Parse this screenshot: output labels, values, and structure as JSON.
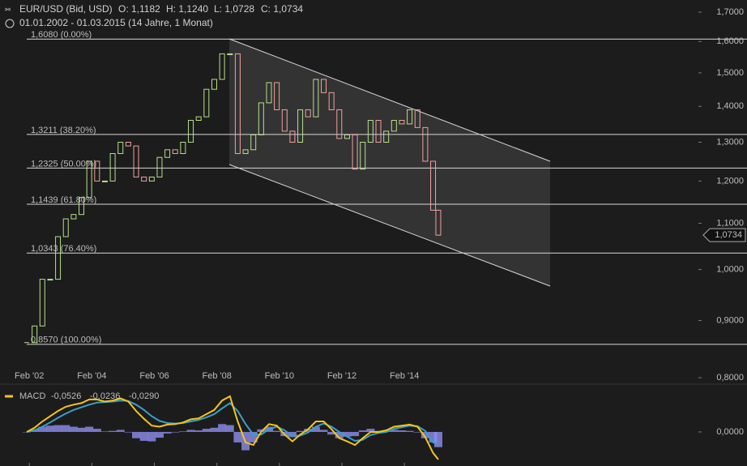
{
  "chart_data": [
    {
      "type": "candlestick",
      "symbol": "EUR/USD (Bid, USD)",
      "ohlc": [
        "O: 1,1182",
        "H: 1,1240",
        "L: 1,0728",
        "C: 1,0734"
      ],
      "range": "01.01.2002 - 01.03.2015 (14 Jahre, 1 Monat)",
      "x": [
        "2002-01",
        "2002-04",
        "2002-07",
        "2002-10",
        "2003-01",
        "2003-04",
        "2003-07",
        "2003-10",
        "2004-01",
        "2004-04",
        "2004-07",
        "2004-10",
        "2005-01",
        "2005-04",
        "2005-07",
        "2005-10",
        "2006-01",
        "2006-04",
        "2006-07",
        "2006-10",
        "2007-01",
        "2007-04",
        "2007-07",
        "2007-10",
        "2008-01",
        "2008-04",
        "2008-07",
        "2008-10",
        "2009-01",
        "2009-04",
        "2009-07",
        "2009-10",
        "2010-01",
        "2010-04",
        "2010-07",
        "2010-10",
        "2011-01",
        "2011-04",
        "2011-07",
        "2011-10",
        "2012-01",
        "2012-04",
        "2012-07",
        "2012-10",
        "2013-01",
        "2013-04",
        "2013-07",
        "2013-10",
        "2014-01",
        "2014-04",
        "2014-07",
        "2014-10",
        "2015-01",
        "2015-03"
      ],
      "values": [
        0.86,
        0.89,
        0.98,
        0.98,
        1.07,
        1.11,
        1.12,
        1.16,
        1.25,
        1.2,
        1.2,
        1.27,
        1.3,
        1.29,
        1.21,
        1.2,
        1.21,
        1.26,
        1.28,
        1.27,
        1.3,
        1.36,
        1.37,
        1.45,
        1.48,
        1.56,
        1.56,
        1.27,
        1.28,
        1.32,
        1.41,
        1.47,
        1.39,
        1.33,
        1.3,
        1.39,
        1.37,
        1.48,
        1.44,
        1.39,
        1.31,
        1.32,
        1.23,
        1.3,
        1.36,
        1.3,
        1.33,
        1.36,
        1.35,
        1.39,
        1.34,
        1.25,
        1.13,
        1.0734
      ],
      "last_label": "1,0734",
      "up_color": "#b5e08a",
      "down_color": "#f2a0a0",
      "log": true,
      "ylim": [
        0.8,
        1.7
      ],
      "yticks": [
        {
          "value": 0.8,
          "label": "0,8000"
        },
        {
          "value": 0.9,
          "label": "0,9000"
        },
        {
          "value": 1,
          "label": "1,0000"
        },
        {
          "value": 1.1,
          "label": "1,1000"
        },
        {
          "value": 1.2,
          "label": "1,2000"
        },
        {
          "value": 1.3,
          "label": "1,3000"
        },
        {
          "value": 1.4,
          "label": "1,4000"
        },
        {
          "value": 1.5,
          "label": "1,5000"
        },
        {
          "value": 1.6,
          "label": "1,6000"
        },
        {
          "value": 1.7,
          "label": "1,7000"
        }
      ],
      "xticks": [
        {
          "value": "2002-02",
          "label": "Feb '02"
        },
        {
          "value": "2004-02",
          "label": "Feb '04"
        },
        {
          "value": "2006-02",
          "label": "Feb '06"
        },
        {
          "value": "2008-02",
          "label": "Feb '08"
        },
        {
          "value": "2010-02",
          "label": "Feb '10"
        },
        {
          "value": "2012-02",
          "label": "Feb '12"
        },
        {
          "value": "2014-02",
          "label": "Feb '14"
        }
      ],
      "levels": [
        {
          "value": 1.608,
          "label": "1,6080 (0.00%)"
        },
        {
          "value": 1.3211,
          "label": "1,3211 (38.20%)"
        },
        {
          "value": 1.2325,
          "label": "1,2325 (50.00%)"
        },
        {
          "value": 1.1439,
          "label": "1,1439 (61.80%)"
        },
        {
          "value": 1.0343,
          "label": "1,0343 (76.40%)"
        },
        {
          "value": 0.857,
          "label": "0,8570 (100.00%)"
        }
      ]
    },
    {
      "type": "macd",
      "title": "MACD",
      "ylim": [
        -0.065,
        0.085
      ],
      "yticks": [
        {
          "value": 0,
          "label": "0,0000"
        }
      ],
      "series": [
        {
          "legend_value": "-0,0526",
          "color": "#f5c518",
          "values": [
            0,
            0.008,
            0.02,
            0.03,
            0.04,
            0.048,
            0.052,
            0.055,
            0.062,
            0.062,
            0.058,
            0.06,
            0.064,
            0.058,
            0.04,
            0.025,
            0.012,
            0.01,
            0.014,
            0.015,
            0.018,
            0.024,
            0.026,
            0.034,
            0.042,
            0.06,
            0.068,
            0.02,
            -0.02,
            -0.025,
            0,
            0.015,
            0.012,
            -0.005,
            -0.018,
            -0.005,
            0.005,
            0.02,
            0.02,
            0.005,
            -0.012,
            -0.018,
            -0.025,
            -0.012,
            0,
            0,
            0.003,
            0.01,
            0.012,
            0.014,
            0.01,
            -0.01,
            -0.04,
            -0.0526
          ]
        },
        {
          "legend_value": "-0,0236",
          "color": "#3a9ec9",
          "values": [
            0,
            0.003,
            0.01,
            0.018,
            0.027,
            0.035,
            0.042,
            0.047,
            0.052,
            0.056,
            0.057,
            0.058,
            0.06,
            0.059,
            0.052,
            0.042,
            0.03,
            0.021,
            0.017,
            0.016,
            0.017,
            0.02,
            0.023,
            0.028,
            0.034,
            0.045,
            0.055,
            0.04,
            0.015,
            -0.005,
            -0.005,
            0.005,
            0.01,
            0.003,
            -0.008,
            -0.007,
            -0.001,
            0.01,
            0.016,
            0.01,
            0,
            -0.009,
            -0.017,
            -0.015,
            -0.006,
            -0.002,
            0,
            0.006,
            0.009,
            0.012,
            0.011,
            0.002,
            -0.02,
            -0.0236
          ]
        },
        {
          "legend_value": "-0,0290",
          "color": "#8f8ff0",
          "values": [
            0,
            0.005,
            0.01,
            0.012,
            0.013,
            0.013,
            0.01,
            0.008,
            0.01,
            0.006,
            0.001,
            0.002,
            0.004,
            -0.001,
            -0.012,
            -0.017,
            -0.018,
            -0.011,
            -0.003,
            -0.001,
            0.001,
            0.004,
            0.003,
            0.006,
            0.008,
            0.015,
            0.013,
            -0.02,
            -0.035,
            -0.02,
            0.005,
            0.01,
            0.002,
            -0.008,
            -0.01,
            0.002,
            0.006,
            0.01,
            0.004,
            -0.005,
            -0.012,
            -0.009,
            -0.008,
            0.003,
            0.006,
            0.002,
            0.003,
            0.004,
            0.003,
            0.002,
            -0.001,
            -0.012,
            -0.02,
            -0.029
          ]
        }
      ]
    }
  ]
}
